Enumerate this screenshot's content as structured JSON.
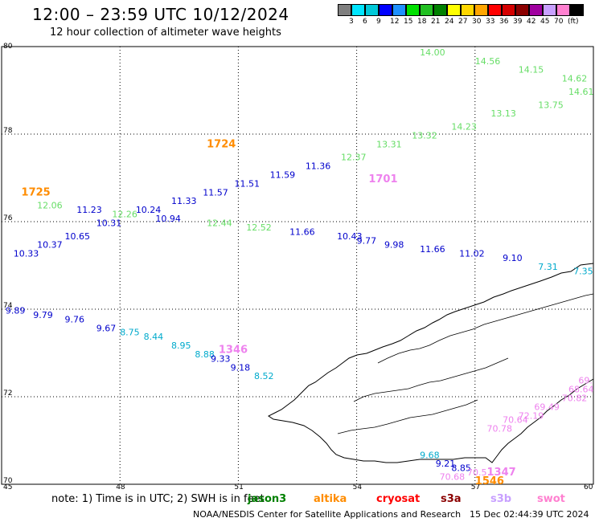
{
  "title": "12:00 – 23:59 UTC 10/12/2024",
  "subtitle": "12 hour collection of altimeter wave heights",
  "color_scale": {
    "colors": [
      "#7f7f7f",
      "#00e5ff",
      "#00c8d8",
      "#0000ff",
      "#1e90ff",
      "#00e000",
      "#22c022",
      "#008000",
      "#ffff00",
      "#ffd700",
      "#ffa500",
      "#ff0000",
      "#d40000",
      "#8b0000",
      "#a000a0",
      "#c8a0ff",
      "#ff80d0",
      "#000000"
    ],
    "labels": [
      "3",
      "6",
      "9",
      "12",
      "15",
      "18",
      "21",
      "24",
      "27",
      "30",
      "33",
      "36",
      "39",
      "42",
      "45",
      "70",
      "(ft)"
    ]
  },
  "axes": {
    "lat_ticks": [
      "80",
      "78",
      "76",
      "74",
      "72",
      "70"
    ],
    "lon_ticks": [
      "45",
      "48",
      "51",
      "54",
      "57",
      "60"
    ]
  },
  "pass_labels": [
    {
      "text": "1725",
      "color": "#ff8c00",
      "lon": 45.5,
      "lat": 76.6
    },
    {
      "text": "1724",
      "color": "#ff8c00",
      "lon": 50.2,
      "lat": 77.7
    },
    {
      "text": "1701",
      "color": "#ee82ee",
      "lon": 54.3,
      "lat": 76.9
    },
    {
      "text": "1346",
      "color": "#ee82ee",
      "lon": 50.5,
      "lat": 73.0
    },
    {
      "text": "1546",
      "color": "#ff8c00",
      "lon": 57.0,
      "lat": 70.0
    },
    {
      "text": "1347",
      "color": "#ee82ee",
      "lon": 57.3,
      "lat": 70.2
    }
  ],
  "observations": [
    {
      "v": "14.00",
      "c": "#66dd66",
      "lon": 55.6,
      "lat": 79.8
    },
    {
      "v": "14.56",
      "c": "#66dd66",
      "lon": 57.0,
      "lat": 79.6
    },
    {
      "v": "14.15",
      "c": "#66dd66",
      "lon": 58.1,
      "lat": 79.4
    },
    {
      "v": "14.62",
      "c": "#66dd66",
      "lon": 59.2,
      "lat": 79.2
    },
    {
      "v": "14.61",
      "c": "#66dd66",
      "lon": 59.8,
      "lat": 78.9
    },
    {
      "v": "13.75",
      "c": "#66dd66",
      "lon": 58.6,
      "lat": 78.6
    },
    {
      "v": "13.13",
      "c": "#66dd66",
      "lon": 57.4,
      "lat": 78.4
    },
    {
      "v": "14.23",
      "c": "#66dd66",
      "lon": 56.4,
      "lat": 78.1
    },
    {
      "v": "13.32",
      "c": "#66dd66",
      "lon": 55.4,
      "lat": 77.9
    },
    {
      "v": "13.31",
      "c": "#66dd66",
      "lon": 54.5,
      "lat": 77.7
    },
    {
      "v": "12.37",
      "c": "#66dd66",
      "lon": 53.6,
      "lat": 77.4
    },
    {
      "v": "11.36",
      "c": "#0000cc",
      "lon": 52.7,
      "lat": 77.2
    },
    {
      "v": "11.59",
      "c": "#0000cc",
      "lon": 51.8,
      "lat": 77.0
    },
    {
      "v": "11.51",
      "c": "#0000cc",
      "lon": 50.9,
      "lat": 76.8
    },
    {
      "v": "11.57",
      "c": "#0000cc",
      "lon": 50.1,
      "lat": 76.6
    },
    {
      "v": "11.33",
      "c": "#0000cc",
      "lon": 49.3,
      "lat": 76.4
    },
    {
      "v": "10.24",
      "c": "#0000cc",
      "lon": 48.4,
      "lat": 76.2
    },
    {
      "v": "10.94",
      "c": "#0000cc",
      "lon": 48.9,
      "lat": 76.0
    },
    {
      "v": "12.26",
      "c": "#66dd66",
      "lon": 47.8,
      "lat": 76.1
    },
    {
      "v": "10.31",
      "c": "#0000cc",
      "lon": 47.4,
      "lat": 75.9
    },
    {
      "v": "11.23",
      "c": "#0000cc",
      "lon": 46.9,
      "lat": 76.2
    },
    {
      "v": "12.06",
      "c": "#66dd66",
      "lon": 45.9,
      "lat": 76.3
    },
    {
      "v": "10.65",
      "c": "#0000cc",
      "lon": 46.6,
      "lat": 75.6
    },
    {
      "v": "10.37",
      "c": "#0000cc",
      "lon": 45.9,
      "lat": 75.4
    },
    {
      "v": "10.33",
      "c": "#0000cc",
      "lon": 45.3,
      "lat": 75.2
    },
    {
      "v": "12.44",
      "c": "#66dd66",
      "lon": 50.2,
      "lat": 75.9
    },
    {
      "v": "12.52",
      "c": "#66dd66",
      "lon": 51.2,
      "lat": 75.8
    },
    {
      "v": "11.66",
      "c": "#0000cc",
      "lon": 52.3,
      "lat": 75.7
    },
    {
      "v": "10.43",
      "c": "#0000cc",
      "lon": 53.5,
      "lat": 75.6
    },
    {
      "v": "9.77",
      "c": "#0000cc",
      "lon": 54.0,
      "lat": 75.5
    },
    {
      "v": "9.98",
      "c": "#0000cc",
      "lon": 54.7,
      "lat": 75.4
    },
    {
      "v": "11.66",
      "c": "#0000cc",
      "lon": 55.6,
      "lat": 75.3
    },
    {
      "v": "11.02",
      "c": "#0000cc",
      "lon": 56.6,
      "lat": 75.2
    },
    {
      "v": "9.10",
      "c": "#0000cc",
      "lon": 57.7,
      "lat": 75.1
    },
    {
      "v": "7.31",
      "c": "#00aacc",
      "lon": 58.6,
      "lat": 74.9
    },
    {
      "v": "7.35",
      "c": "#00aacc",
      "lon": 59.5,
      "lat": 74.8
    },
    {
      "v": "9.89",
      "c": "#0000cc",
      "lon": 45.1,
      "lat": 73.9
    },
    {
      "v": "9.79",
      "c": "#0000cc",
      "lon": 45.8,
      "lat": 73.8
    },
    {
      "v": "9.76",
      "c": "#0000cc",
      "lon": 46.6,
      "lat": 73.7
    },
    {
      "v": "9.67",
      "c": "#0000cc",
      "lon": 47.4,
      "lat": 73.5
    },
    {
      "v": "8.75",
      "c": "#00aacc",
      "lon": 48.0,
      "lat": 73.4
    },
    {
      "v": "8.44",
      "c": "#00aacc",
      "lon": 48.6,
      "lat": 73.3
    },
    {
      "v": "8.95",
      "c": "#00aacc",
      "lon": 49.3,
      "lat": 73.1
    },
    {
      "v": "8.88",
      "c": "#00aacc",
      "lon": 49.9,
      "lat": 72.9
    },
    {
      "v": "9.33",
      "c": "#0000cc",
      "lon": 50.3,
      "lat": 72.8
    },
    {
      "v": "9.18",
      "c": "#0000cc",
      "lon": 50.8,
      "lat": 72.6
    },
    {
      "v": "8.52",
      "c": "#00aacc",
      "lon": 51.4,
      "lat": 72.4
    },
    {
      "v": "69.",
      "c": "#ee82ee",
      "lon": 59.8,
      "lat": 72.3
    },
    {
      "v": "68.64",
      "c": "#ee82ee",
      "lon": 59.6,
      "lat": 72.1
    },
    {
      "v": "70.82",
      "c": "#ee82ee",
      "lon": 59.2,
      "lat": 71.9
    },
    {
      "v": "69.49",
      "c": "#ee82ee",
      "lon": 58.5,
      "lat": 71.7
    },
    {
      "v": "72.19",
      "c": "#ee82ee",
      "lon": 58.1,
      "lat": 71.5
    },
    {
      "v": "70.64",
      "c": "#ee82ee",
      "lon": 57.7,
      "lat": 71.4
    },
    {
      "v": "70.78",
      "c": "#ee82ee",
      "lon": 57.3,
      "lat": 71.2
    },
    {
      "v": "9.68",
      "c": "#00aacc",
      "lon": 55.6,
      "lat": 70.6
    },
    {
      "v": "9.21",
      "c": "#0000cc",
      "lon": 56.0,
      "lat": 70.4
    },
    {
      "v": "8.85",
      "c": "#0000cc",
      "lon": 56.4,
      "lat": 70.3
    },
    {
      "v": "70.68",
      "c": "#ee82ee",
      "lon": 56.1,
      "lat": 70.1
    },
    {
      "v": "70.5",
      "c": "#ee82ee",
      "lon": 56.8,
      "lat": 70.2
    }
  ],
  "note": {
    "text": "note:  1) Time is in UTC;  2) SWH is in feet",
    "satellites": [
      {
        "name": "jason3",
        "color": "#008000"
      },
      {
        "name": "altika",
        "color": "#ff8c00"
      },
      {
        "name": "cryosat",
        "color": "#ff0000"
      },
      {
        "name": "s3a",
        "color": "#8b0000"
      },
      {
        "name": "s3b",
        "color": "#c8a0ff"
      },
      {
        "name": "swot",
        "color": "#ff80d0"
      }
    ]
  },
  "footer_left": "NOAA/NESDIS Center for Satellite Applications and Research",
  "footer_right": "15 Dec 02:44:39 UTC 2024"
}
